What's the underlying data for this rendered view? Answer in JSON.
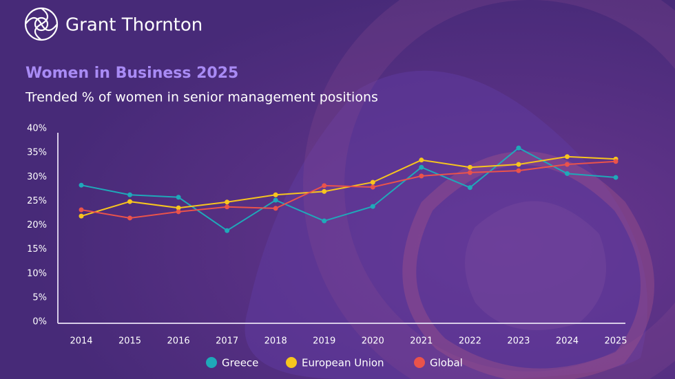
{
  "brand": "Grant Thornton",
  "chart_data": {
    "type": "line",
    "title": "Women in Business 2025",
    "subtitle": "Trended % of women in senior management positions",
    "categories": [
      "2014",
      "2015",
      "2016",
      "2017",
      "2018",
      "2019",
      "2020",
      "2021",
      "2022",
      "2023",
      "2024",
      "2025"
    ],
    "series": [
      {
        "name": "Greece",
        "color": "#1fa9b9",
        "values": [
          28.3,
          26.3,
          25.8,
          18.9,
          25.2,
          20.9,
          23.9,
          32.0,
          27.8,
          36.0,
          30.7,
          29.9
        ]
      },
      {
        "name": "European Union",
        "color": "#f7c51e",
        "values": [
          21.9,
          24.9,
          23.6,
          24.8,
          26.3,
          27.0,
          28.9,
          33.5,
          32.0,
          32.6,
          34.2,
          33.7
        ]
      },
      {
        "name": "Global",
        "color": "#ea534b",
        "values": [
          23.2,
          21.5,
          22.8,
          23.8,
          23.5,
          28.2,
          27.9,
          30.2,
          30.9,
          31.3,
          32.6,
          33.2
        ]
      }
    ],
    "ylim": [
      0,
      40
    ],
    "yticks": [
      {
        "value": 0,
        "label": "0%"
      },
      {
        "value": 5,
        "label": "5%"
      },
      {
        "value": 10,
        "label": "10%"
      },
      {
        "value": 15,
        "label": "15%"
      },
      {
        "value": 20,
        "label": "20%"
      },
      {
        "value": 25,
        "label": "25%"
      },
      {
        "value": 30,
        "label": "30%"
      },
      {
        "value": 35,
        "label": "35%"
      },
      {
        "value": 40,
        "label": "40%"
      }
    ],
    "grid": false,
    "legend": "bottom"
  }
}
